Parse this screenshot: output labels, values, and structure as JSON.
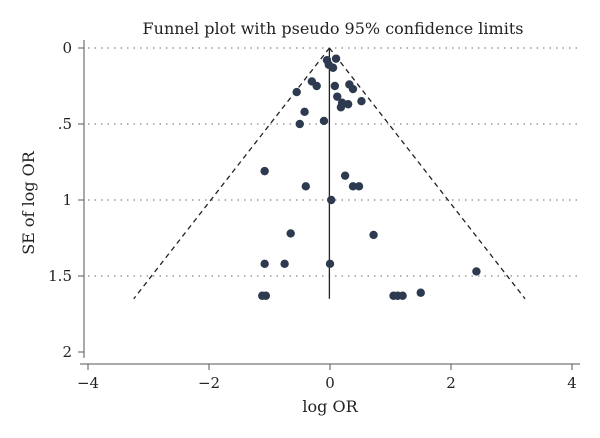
{
  "chart_data": {
    "type": "scatter",
    "title": "Funnel plot with pseudo 95% confidence limits",
    "xlabel": "log OR",
    "ylabel": "SE of log OR",
    "xlim": [
      -4,
      4
    ],
    "ylim": [
      0,
      2
    ],
    "y_reversed": true,
    "x_ticks": [
      -4,
      -2,
      0,
      2,
      4
    ],
    "x_tick_labels": [
      "−4",
      "−2",
      "0",
      "2",
      "4"
    ],
    "y_ticks": [
      0,
      0.5,
      1,
      1.5,
      2
    ],
    "y_tick_labels": [
      "0",
      ".5",
      "1",
      "1.5",
      "2"
    ],
    "y_gridlines": [
      0,
      0.5,
      1,
      1.5
    ],
    "grid": true,
    "pooled_estimate": -0.01,
    "pseudo_ci_max_se": 1.65,
    "points": [
      {
        "x": -0.05,
        "y": 0.08
      },
      {
        "x": 0.1,
        "y": 0.07
      },
      {
        "x": -0.02,
        "y": 0.11
      },
      {
        "x": 0.05,
        "y": 0.13
      },
      {
        "x": -0.3,
        "y": 0.22
      },
      {
        "x": -0.22,
        "y": 0.25
      },
      {
        "x": 0.08,
        "y": 0.25
      },
      {
        "x": 0.32,
        "y": 0.24
      },
      {
        "x": 0.38,
        "y": 0.27
      },
      {
        "x": -0.55,
        "y": 0.29
      },
      {
        "x": 0.12,
        "y": 0.32
      },
      {
        "x": 0.2,
        "y": 0.36
      },
      {
        "x": 0.3,
        "y": 0.37
      },
      {
        "x": 0.52,
        "y": 0.35
      },
      {
        "x": 0.18,
        "y": 0.39
      },
      {
        "x": -0.42,
        "y": 0.42
      },
      {
        "x": -0.1,
        "y": 0.48
      },
      {
        "x": -0.5,
        "y": 0.5
      },
      {
        "x": -1.08,
        "y": 0.81
      },
      {
        "x": 0.25,
        "y": 0.84
      },
      {
        "x": -0.4,
        "y": 0.91
      },
      {
        "x": 0.38,
        "y": 0.91
      },
      {
        "x": 0.48,
        "y": 0.91
      },
      {
        "x": 0.02,
        "y": 1.0
      },
      {
        "x": -0.65,
        "y": 1.22
      },
      {
        "x": 0.72,
        "y": 1.23
      },
      {
        "x": -1.08,
        "y": 1.42
      },
      {
        "x": -0.75,
        "y": 1.42
      },
      {
        "x": 0.0,
        "y": 1.42
      },
      {
        "x": 2.42,
        "y": 1.47
      },
      {
        "x": -1.12,
        "y": 1.63
      },
      {
        "x": -1.06,
        "y": 1.63
      },
      {
        "x": 1.05,
        "y": 1.63
      },
      {
        "x": 1.12,
        "y": 1.63
      },
      {
        "x": 1.2,
        "y": 1.63
      },
      {
        "x": 1.5,
        "y": 1.61
      }
    ]
  }
}
